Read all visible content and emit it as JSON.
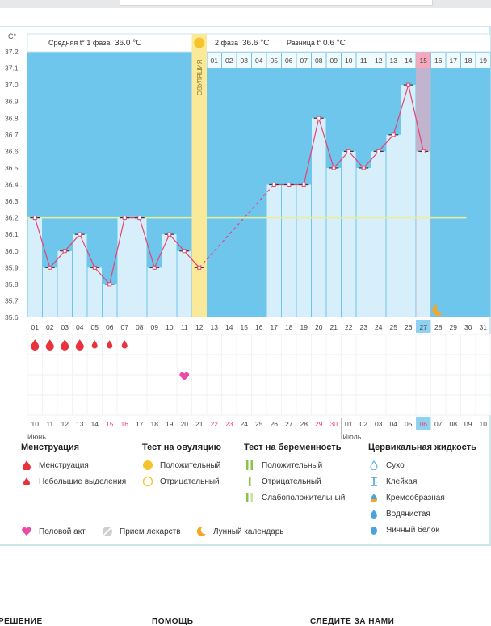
{
  "header": {
    "unit": "C°",
    "phase1_label": "Средняя t° 1 фаза",
    "phase1_value": "36.0 °C",
    "phase2_label": "2 фаза",
    "phase2_value": "36.6 °C",
    "diff_label": "Разница t°",
    "diff_value": "0.6 °C",
    "ovulation_label": "ОВУЛЯЦИЯ"
  },
  "chart_data": {
    "type": "line",
    "ylabel": "C°",
    "ylim": [
      35.6,
      37.2
    ],
    "yticks": [
      35.6,
      35.7,
      35.8,
      35.9,
      36.0,
      36.1,
      36.2,
      36.3,
      36.4,
      36.5,
      36.6,
      36.7,
      36.8,
      36.9,
      37.0,
      37.1,
      37.2
    ],
    "ytick_labels": [
      "35.6",
      "35.7",
      "35.8",
      "35.9",
      "36.0",
      "36.1",
      "36.2",
      "36.3",
      "36.4 .",
      "36.5",
      "36.6",
      "36.7",
      "36.8",
      "36.9",
      "37.0",
      "37.1",
      "37.2"
    ],
    "cycle_days": [
      "01",
      "02",
      "03",
      "04",
      "05",
      "06",
      "07",
      "08",
      "09",
      "10",
      "11",
      "12",
      "13",
      "14",
      "15",
      "16",
      "17",
      "18",
      "19",
      "20",
      "21",
      "22",
      "23",
      "24",
      "25",
      "26",
      "27",
      "28",
      "29",
      "30",
      "31"
    ],
    "phase2_days": [
      "01",
      "02",
      "03",
      "04",
      "05",
      "06",
      "07",
      "08",
      "09",
      "10",
      "11",
      "12",
      "13",
      "14",
      "15",
      "16",
      "17",
      "18",
      "19"
    ],
    "temperatures": [
      36.2,
      35.9,
      36.0,
      36.1,
      35.9,
      35.8,
      36.2,
      36.2,
      35.9,
      36.1,
      36.0,
      35.9,
      null,
      null,
      null,
      null,
      36.4,
      36.4,
      36.4,
      36.8,
      36.5,
      36.6,
      36.5,
      36.6,
      36.7,
      37.0,
      36.6,
      null,
      null,
      null,
      null
    ],
    "dashed_gap": [
      12,
      17
    ],
    "coverline": 36.2,
    "ovulation_day": 12,
    "current_day": 27,
    "highlight_phase_day": "15",
    "calendar_dates": [
      "10",
      "11",
      "12",
      "13",
      "14",
      "15",
      "16",
      "17",
      "18",
      "19",
      "20",
      "21",
      "22",
      "23",
      "24",
      "25",
      "26",
      "27",
      "28",
      "29",
      "30",
      "01",
      "02",
      "03",
      "04",
      "05",
      "06",
      "07",
      "08",
      "09",
      "10"
    ],
    "calendar_red": [
      5,
      6,
      12,
      13,
      19,
      20,
      26
    ],
    "month1": "Июнь",
    "month2": "Июль",
    "menstruation_days": [
      1,
      2,
      3,
      4
    ],
    "spotting_days": [
      5,
      6,
      7
    ],
    "intercourse_day": 11,
    "moon_day": 28,
    "ovulation_circle_phase": "ovulation"
  },
  "legend": {
    "menstruation": {
      "title": "Менструация",
      "items": [
        "Менструация",
        "Небольшие выделения"
      ]
    },
    "ovulation_test": {
      "title": "Тест на овуляцию",
      "items": [
        "Положительный",
        "Отрицательный"
      ]
    },
    "pregnancy_test": {
      "title": "Тест на беременность",
      "items": [
        "Положительный",
        "Отрицательный",
        "Слабоположительный"
      ]
    },
    "cervical": {
      "title": "Цервикальная жидкость",
      "items": [
        "Сухо",
        "Клейкая",
        "Кремообразная",
        "Водянистая",
        "Яичный белок"
      ]
    },
    "other": [
      "Половой акт",
      "Прием лекарств",
      "Лунный календарь"
    ]
  },
  "footer": {
    "col1": "РЕШЕНИЕ",
    "col2": "ПОМОЩЬ",
    "col3": "СЛЕДИТЕ ЗА НАМИ"
  },
  "colors": {
    "blue_bg": "#6ec6ec",
    "bar_fill": "#d6effb",
    "line_pink": "#e8416e",
    "ovulation_band": "#fbe99a",
    "pink_col": "#f7a8bd",
    "coverline": "#e8ef99",
    "today_box": "#8fd1f0"
  }
}
